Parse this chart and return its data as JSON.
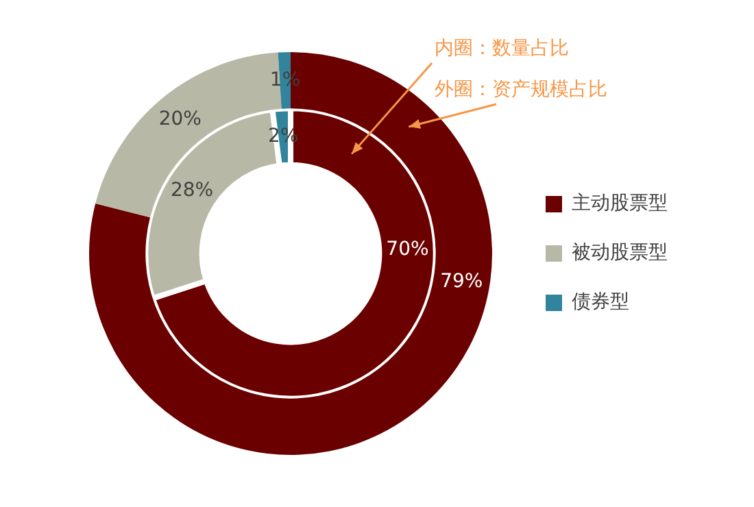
{
  "chart_data": {
    "type": "donut",
    "categories": [
      "主动股票型",
      "被动股票型",
      "债券型"
    ],
    "colors": [
      "#6b0000",
      "#b8b8a6",
      "#31849b"
    ],
    "series": [
      {
        "name": "外圈：资产规模占比",
        "values": [
          79,
          20,
          1
        ],
        "value_labels": [
          "79%",
          "20%",
          "1%"
        ]
      },
      {
        "name": "内圈：数量占比",
        "values": [
          70,
          28,
          2
        ],
        "value_labels": [
          "70%",
          "28%",
          "2%"
        ]
      }
    ],
    "legend": "right"
  }
}
